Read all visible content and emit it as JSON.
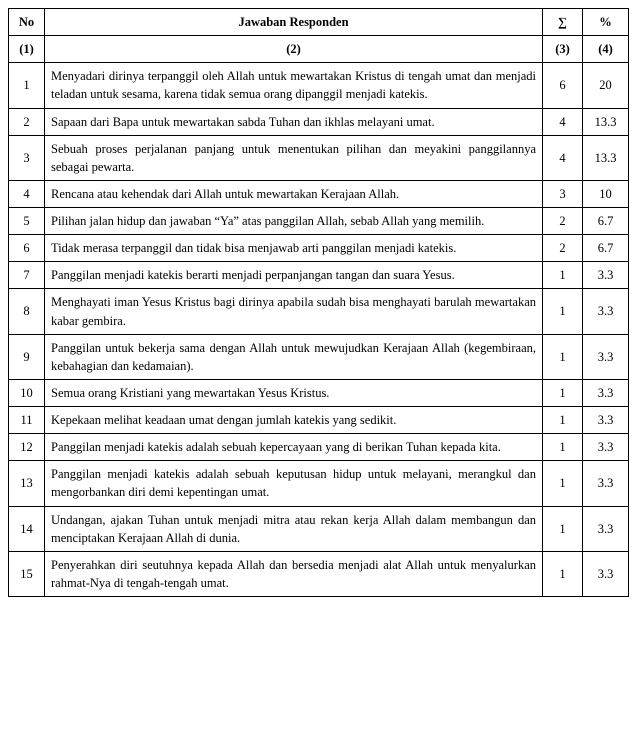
{
  "table": {
    "columns": {
      "no_label": "No",
      "resp_label": "Jawaban Responden",
      "sum_label": "∑",
      "pct_label": "%"
    },
    "header2": {
      "c1": "(1)",
      "c2": "(2)",
      "c3": "(3)",
      "c4": "(4)"
    },
    "rows": [
      {
        "no": "1",
        "resp": "Menyadari dirinya terpanggil  oleh Allah untuk mewartakan Kristus di tengah umat dan menjadi teladan untuk sesama, karena tidak semua orang dipanggil menjadi katekis.",
        "sum": "6",
        "pct": "20"
      },
      {
        "no": "2",
        "resp": "Sapaan dari Bapa untuk mewartakan sabda Tuhan dan ikhlas melayani umat.",
        "sum": "4",
        "pct": "13.3"
      },
      {
        "no": "3",
        "resp": "Sebuah proses perjalanan panjang untuk menentukan pilihan dan meyakini panggilannya sebagai pewarta.",
        "sum": "4",
        "pct": "13.3"
      },
      {
        "no": "4",
        "resp": "Rencana atau kehendak dari Allah untuk mewartakan Kerajaan Allah.",
        "sum": "3",
        "pct": "10"
      },
      {
        "no": "5",
        "resp": "Pilihan jalan hidup dan jawaban “Ya” atas panggilan Allah, sebab Allah yang memilih.",
        "sum": "2",
        "pct": "6.7"
      },
      {
        "no": "6",
        "resp": "Tidak merasa terpanggil dan tidak bisa menjawab arti panggilan menjadi katekis.",
        "sum": "2",
        "pct": "6.7"
      },
      {
        "no": "7",
        "resp": "Panggilan menjadi katekis berarti menjadi perpanjangan tangan dan suara Yesus.",
        "sum": "1",
        "pct": "3.3"
      },
      {
        "no": "8",
        "resp": "Menghayati iman Yesus Kristus bagi dirinya apabila sudah bisa menghayati barulah mewartakan kabar gembira.",
        "sum": "1",
        "pct": "3.3"
      },
      {
        "no": "9",
        "resp": "Panggilan untuk bekerja sama dengan Allah untuk mewujudkan Kerajaan Allah (kegembiraan, kebahagian dan kedamaian).",
        "sum": "1",
        "pct": "3.3"
      },
      {
        "no": "10",
        "resp": "Semua orang Kristiani yang mewartakan Yesus Kristus.",
        "sum": "1",
        "pct": "3.3"
      },
      {
        "no": "11",
        "resp": "Kepekaan melihat keadaan umat dengan jumlah katekis yang sedikit.",
        "sum": "1",
        "pct": "3.3"
      },
      {
        "no": "12",
        "resp": "Panggilan menjadi katekis adalah sebuah  kepercayaan yang di berikan Tuhan kepada kita.",
        "sum": "1",
        "pct": "3.3"
      },
      {
        "no": "13",
        "resp": "Panggilan menjadi katekis adalah sebuah keputusan hidup untuk melayani, merangkul dan  mengorbankan diri demi kepentingan umat.",
        "sum": "1",
        "pct": "3.3"
      },
      {
        "no": "14",
        "resp": "Undangan, ajakan Tuhan untuk menjadi mitra atau rekan kerja Allah dalam membangun dan menciptakan Kerajaan Allah di dunia.",
        "sum": "1",
        "pct": "3.3"
      },
      {
        "no": "15",
        "resp": "Penyerahkan diri seutuhnya kepada Allah dan bersedia menjadi alat Allah untuk menyalurkan rahmat-Nya di tengah-tengah umat.",
        "sum": "1",
        "pct": "3.3"
      }
    ]
  },
  "style": {
    "border_color": "#000000",
    "background": "#ffffff",
    "font_family": "Times New Roman",
    "header_fontsize": 13,
    "body_fontsize": 12.5,
    "col_widths": {
      "no": 36,
      "sum": 40,
      "pct": 46
    }
  }
}
